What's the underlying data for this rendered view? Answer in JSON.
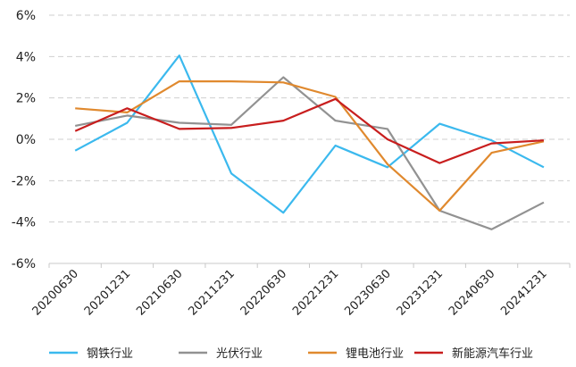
{
  "chart_data": {
    "type": "line",
    "categories": [
      "20200630",
      "20201231",
      "20210630",
      "20211231",
      "20220630",
      "20221231",
      "20230630",
      "20231231",
      "20240630",
      "20241231"
    ],
    "ylim": [
      -6,
      6
    ],
    "yticks": [
      -6,
      -4,
      -2,
      0,
      2,
      4,
      6
    ],
    "ytick_labels": [
      "-6%",
      "-4%",
      "-2%",
      "0%",
      "2%",
      "4%",
      "6%"
    ],
    "grid": true,
    "legend_position": "bottom",
    "series": [
      {
        "name": "钢铁行业",
        "color": "#3bb9ee",
        "values": [
          -0.55,
          0.8,
          4.05,
          -1.65,
          -3.55,
          -0.3,
          -1.35,
          0.75,
          -0.05,
          -1.35
        ]
      },
      {
        "name": "光伏行业",
        "color": "#929292",
        "values": [
          0.65,
          1.15,
          0.8,
          0.7,
          3.0,
          0.9,
          0.5,
          -3.45,
          -4.35,
          -3.05
        ]
      },
      {
        "name": "锂电池行业",
        "color": "#e0892e",
        "values": [
          1.5,
          1.3,
          2.8,
          2.8,
          2.75,
          2.05,
          -1.2,
          -3.45,
          -0.65,
          -0.1
        ]
      },
      {
        "name": "新能源汽车行业",
        "color": "#c81e1e",
        "values": [
          0.4,
          1.5,
          0.5,
          0.55,
          0.9,
          1.95,
          0.0,
          -1.15,
          -0.2,
          -0.05
        ]
      }
    ]
  }
}
